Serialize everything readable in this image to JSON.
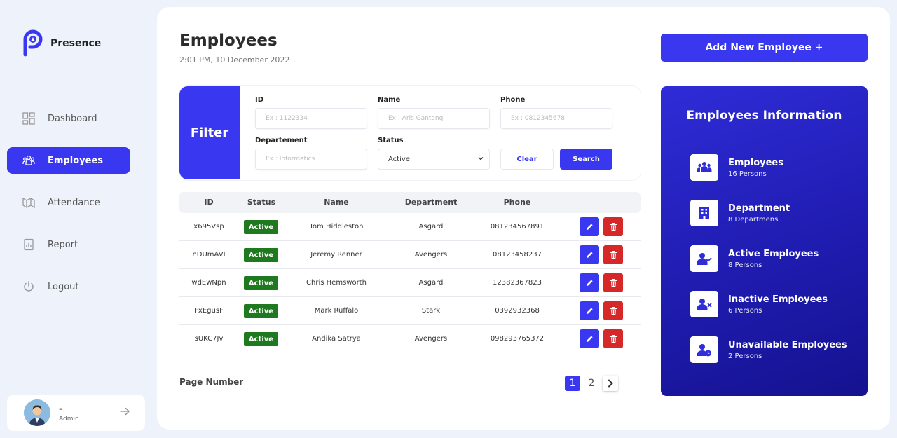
{
  "app": {
    "name": "Presence"
  },
  "sidebar": {
    "items": [
      {
        "label": "Dashboard",
        "icon": "dashboard-icon"
      },
      {
        "label": "Employees",
        "icon": "employees-icon",
        "active": true
      },
      {
        "label": "Attendance",
        "icon": "attendance-icon"
      },
      {
        "label": "Report",
        "icon": "report-icon"
      },
      {
        "label": "Logout",
        "icon": "power-icon"
      }
    ],
    "user": {
      "name": "-",
      "role": "Admin"
    }
  },
  "header": {
    "title": "Employees",
    "datetime": "2:01 PM, 10 December 2022",
    "add_button": "Add New Employee +"
  },
  "filter": {
    "label": "Filter",
    "id_label": "ID",
    "id_placeholder": "Ex : 1122334",
    "name_label": "Name",
    "name_placeholder": "Ex : Aris Ganteng",
    "phone_label": "Phone",
    "phone_placeholder": "Ex : 0812345678",
    "department_label": "Departement",
    "department_placeholder": "Ex : Informatics",
    "status_label": "Status",
    "status_value": "Active",
    "clear_label": "Clear",
    "search_label": "Search"
  },
  "table": {
    "headers": [
      "ID",
      "Status",
      "Name",
      "Department",
      "Phone"
    ],
    "rows": [
      {
        "id": "x695Vsp",
        "status": "Active",
        "name": "Tom Hiddleston",
        "department": "Asgard",
        "phone": "081234567891"
      },
      {
        "id": "nDUmAVI",
        "status": "Active",
        "name": "Jeremy Renner",
        "department": "Avengers",
        "phone": "08123458237"
      },
      {
        "id": "wdEwNpn",
        "status": "Active",
        "name": "Chris Hemsworth",
        "department": "Asgard",
        "phone": "12382367823"
      },
      {
        "id": "FxEgusF",
        "status": "Active",
        "name": "Mark Ruffalo",
        "department": "Stark",
        "phone": "0392932368"
      },
      {
        "id": "sUKC7Jv",
        "status": "Active",
        "name": "Andika Satrya",
        "department": "Avengers",
        "phone": "098293765372"
      }
    ]
  },
  "pagination": {
    "label": "Page Number",
    "pages": [
      "1",
      "2"
    ],
    "current": "1"
  },
  "info": {
    "title": "Employees Information",
    "items": [
      {
        "label": "Employees",
        "value": "16 Persons",
        "icon": "team-icon"
      },
      {
        "label": "Department",
        "value": "8 Departmens",
        "icon": "building-icon"
      },
      {
        "label": "Active Employees",
        "value": "8 Persons",
        "icon": "user-check-icon"
      },
      {
        "label": "Inactive Employees",
        "value": "6 Persons",
        "icon": "user-x-icon"
      },
      {
        "label": "Unavailable Employees",
        "value": "2 Persons",
        "icon": "user-clock-icon"
      }
    ]
  },
  "colors": {
    "accent": "#3a37f0",
    "active_badge": "#1f7a1f",
    "delete": "#d62828",
    "info_bg": "#1f1cb0"
  }
}
